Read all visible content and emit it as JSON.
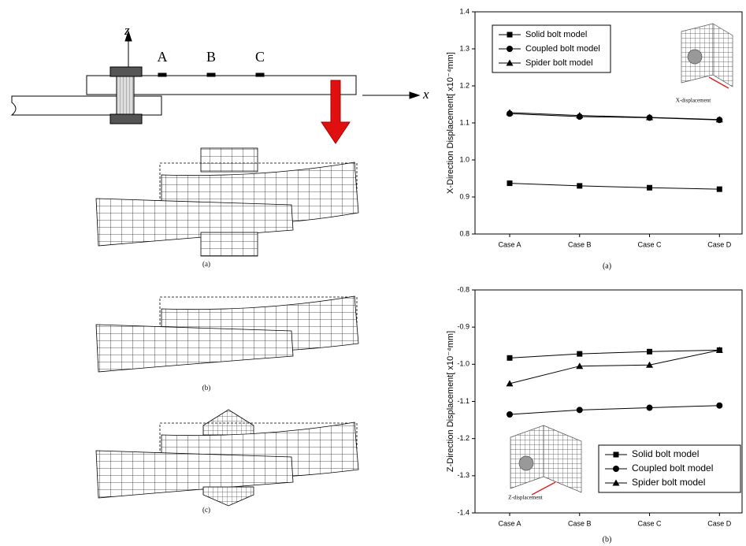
{
  "chart_data": [
    {
      "type": "line",
      "y_label": "X-Direction Displacement[ x10⁻⁴mm]",
      "categories": [
        "Case A",
        "Case B",
        "Case C",
        "Case D"
      ],
      "series": [
        {
          "name": "Solid bolt model",
          "color": "#000000",
          "marker": "square",
          "values": [
            0.937,
            0.93,
            0.925,
            0.921
          ]
        },
        {
          "name": "Coupled bolt model",
          "color": "#000000",
          "marker": "circle",
          "values": [
            1.125,
            1.117,
            1.114,
            1.108
          ]
        },
        {
          "name": "Spider bolt model",
          "color": "#000000",
          "marker": "triangle",
          "values": [
            1.128,
            1.12,
            1.115,
            1.109
          ]
        }
      ],
      "ylim": [
        0.8,
        1.4
      ],
      "yticks": [
        0.8,
        0.9,
        {
          "value": 1.0,
          "label": "1.0"
        },
        1.1,
        1.2,
        1.3,
        1.4
      ],
      "legend": "upper left",
      "inset_label": "X-displacement",
      "caption": "(a)"
    },
    {
      "type": "line",
      "y_label": "Z-Direction Displacement[ x10⁻⁴mm]",
      "categories": [
        "Case A",
        "Case B",
        "Case C",
        "Case D"
      ],
      "series": [
        {
          "name": "Solid bolt model",
          "color": "#000000",
          "marker": "square",
          "values": [
            -0.983,
            -0.972,
            -0.966,
            -0.962
          ]
        },
        {
          "name": "Coupled bolt model",
          "color": "#000000",
          "marker": "circle",
          "values": [
            -1.135,
            -1.123,
            -1.117,
            -1.111
          ]
        },
        {
          "name": "Spider bolt model",
          "color": "#000000",
          "marker": "triangle",
          "values": [
            -1.052,
            -1.005,
            -1.002,
            -0.962
          ]
        }
      ],
      "ylim": [
        -1.4,
        -0.8
      ],
      "yticks": [
        -0.8,
        -0.9,
        {
          "value": -1.0,
          "label": "-1.0"
        },
        -1.1,
        -1.2,
        -1.3,
        -1.4
      ],
      "legend": "lower right",
      "inset_label": "Z-displacement",
      "caption": "(b)"
    }
  ],
  "diagram": {
    "axis_z": "z",
    "axis_x": "x",
    "points": [
      "A",
      "B",
      "C"
    ],
    "captions": [
      "(a)",
      "(b)",
      "(c)"
    ]
  }
}
